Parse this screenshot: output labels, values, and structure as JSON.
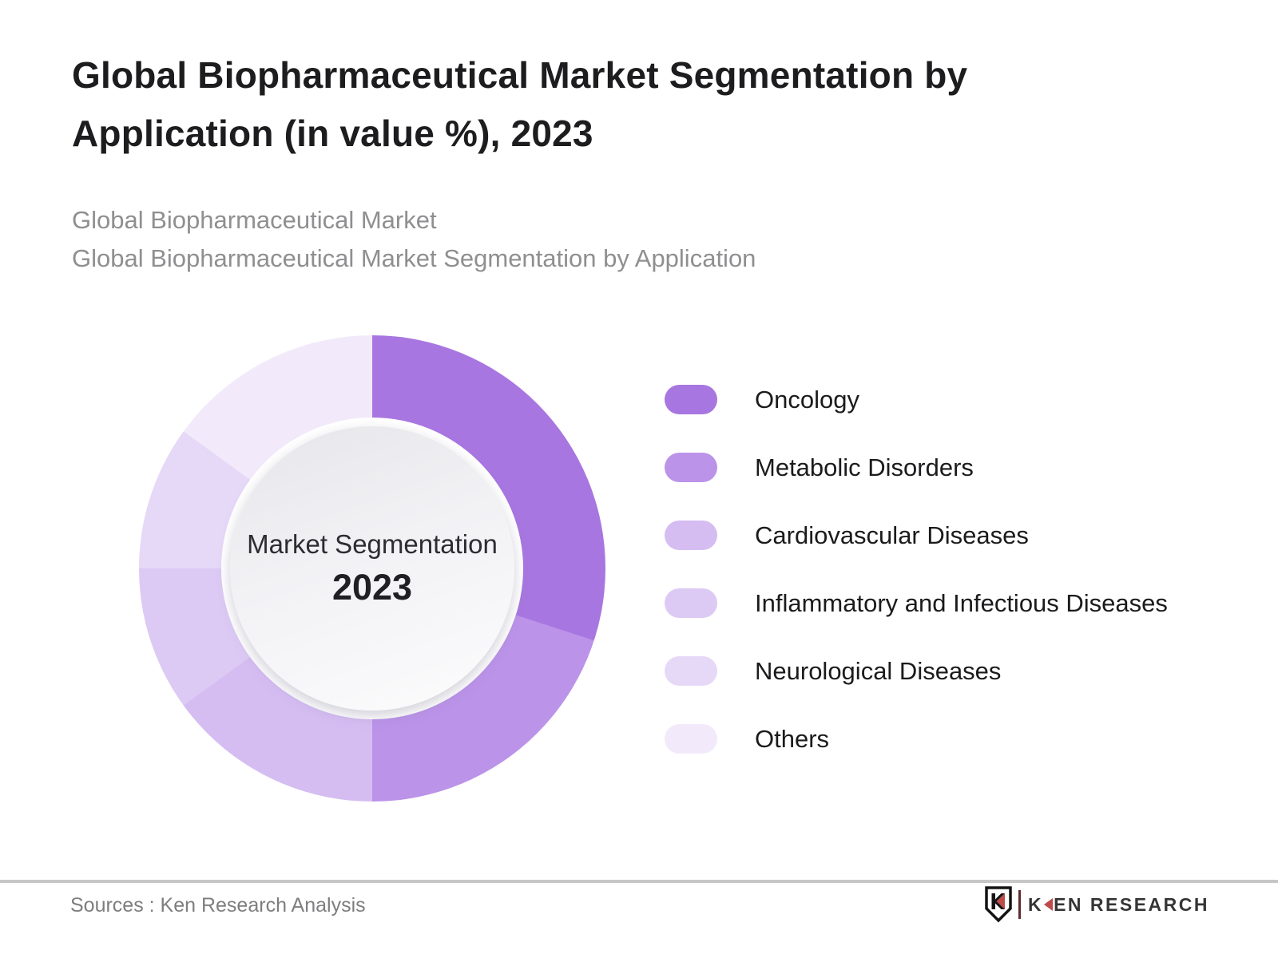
{
  "header": {
    "title_line1": "Global Biopharmaceutical Market Segmentation by",
    "title_line2": "Application (in value %), 2023",
    "subtitle_line1": "Global Biopharmaceutical Market",
    "subtitle_line2": "Global Biopharmaceutical Market Segmentation by Application"
  },
  "chart_data": {
    "type": "pie",
    "subtype": "donut",
    "title": "Global Biopharmaceutical Market Segmentation by Application (in value %), 2023",
    "categories": [
      "Oncology",
      "Metabolic Disorders",
      "Cardiovascular Diseases",
      "Inflammatory and Infectious Diseases",
      "Neurological Diseases",
      "Others"
    ],
    "values": [
      30,
      20,
      15,
      10,
      10,
      15
    ],
    "unit": "%",
    "values_estimated_from_angles": true,
    "colors": [
      "#a876e0",
      "#bb93e9",
      "#d5bdf2",
      "#dccaf4",
      "#e6d8f7",
      "#f2eafb"
    ],
    "start_angle_deg": 0,
    "direction": "clockwise",
    "donut_hole_ratio": 0.63,
    "center_label_line1": "Market Segmentation",
    "center_label_line2": "2023",
    "legend_position": "right",
    "data_labels_shown": false
  },
  "footer": {
    "sources": "Sources : Ken Research Analysis",
    "logo_part1": "K",
    "logo_part2": "EN RESEARCH"
  }
}
